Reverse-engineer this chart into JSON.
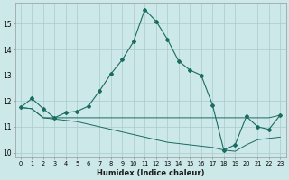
{
  "xlabel": "Humidex (Indice chaleur)",
  "bg_color": "#cce8e8",
  "line_color": "#1a6b60",
  "grid_color": "#aacaca",
  "xlim": [
    -0.5,
    23.5
  ],
  "ylim": [
    9.8,
    15.8
  ],
  "yticks": [
    10,
    11,
    12,
    13,
    14,
    15
  ],
  "xticks": [
    0,
    1,
    2,
    3,
    4,
    5,
    6,
    7,
    8,
    9,
    10,
    11,
    12,
    13,
    14,
    15,
    16,
    17,
    18,
    19,
    20,
    21,
    22,
    23
  ],
  "series1": [
    11.75,
    12.1,
    11.7,
    11.35,
    11.55,
    11.6,
    11.8,
    12.4,
    13.05,
    13.6,
    14.3,
    15.55,
    15.1,
    14.4,
    13.55,
    13.2,
    13.0,
    11.85,
    10.1,
    10.3,
    11.4,
    11.0,
    10.9,
    11.45
  ],
  "series2": [
    11.75,
    11.7,
    11.35,
    11.35,
    11.35,
    11.35,
    11.35,
    11.35,
    11.35,
    11.35,
    11.35,
    11.35,
    11.35,
    11.35,
    11.35,
    11.35,
    11.35,
    11.35,
    11.35,
    11.35,
    11.35,
    11.35,
    11.35,
    11.45
  ],
  "series3": [
    11.75,
    11.7,
    11.35,
    11.3,
    11.25,
    11.2,
    11.1,
    11.0,
    10.9,
    10.8,
    10.7,
    10.6,
    10.5,
    10.4,
    10.35,
    10.3,
    10.25,
    10.2,
    10.1,
    10.05,
    10.3,
    10.5,
    10.55,
    10.6
  ]
}
